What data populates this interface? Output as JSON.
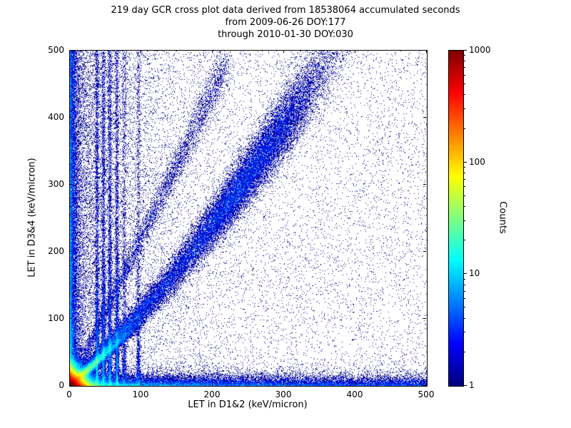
{
  "chart_data": {
    "type": "heatmap",
    "title_lines": [
      "219 day GCR cross plot data derived from 18538064 accumulated seconds",
      "from 2009-06-26 DOY:177",
      "through 2010-01-30 DOY:030"
    ],
    "xlabel": "LET in D1&2 (keV/micron)",
    "ylabel": "LET in D3&4 (keV/micron)",
    "xlim": [
      0,
      500
    ],
    "ylim": [
      0,
      500
    ],
    "xticks": [
      0,
      100,
      200,
      300,
      400,
      500
    ],
    "yticks": [
      0,
      100,
      200,
      300,
      400,
      500
    ],
    "grid": false,
    "background": "#ffffff",
    "colorbar": {
      "label": "Counts",
      "scale": "log",
      "range": [
        1,
        1000
      ],
      "ticks": [
        1,
        10,
        100,
        1000
      ],
      "colormap": "jet",
      "position": "right"
    },
    "visible_features": [
      "very dense hot spot (red/yellow/green) at the origin within ~0-30 keV/micron on both axes",
      "bright short diagonal streak near the origin up to ~(70,70)",
      "dense horizontal band along y~0 extending to x=500, brightest near origin",
      "dense vertical band along x~0 extending to y=500",
      "several cyan vertical streaks near x=38-66 dense below y~150, faint to y=500",
      "broad diagonal coincidence band of slope ~1.3 from origin exiting top near x~375 with a denser blue/cyan blob around (250,310)",
      "sparse uniform dark-blue single-count scatter over the whole plane, denser for x<150"
    ],
    "distribution": {
      "seed": 1337,
      "components": [
        {
          "kind": "exp2d",
          "n": 120000,
          "mx": 7,
          "my": 7
        },
        {
          "kind": "band_x",
          "n": 26000,
          "pow": 2.0,
          "ymean": 6
        },
        {
          "kind": "band_y",
          "n": 16000,
          "pow": 1.5,
          "xmean": 4
        },
        {
          "kind": "left_fill",
          "n": 12000,
          "xmean": 60
        },
        {
          "kind": "diag",
          "n": 40000,
          "frac_exp": 0.55,
          "exp_mean": 130,
          "bump_mu": 255,
          "bump_sigma": 55,
          "curve": 0.001,
          "xnoise0": 2,
          "xnoisek": 0.03,
          "ynoise0": 4,
          "ynoisek": 0.05
        },
        {
          "kind": "diag2",
          "n": 14000,
          "tmean": 22,
          "slope": 0.95,
          "sigma": 2.5
        },
        {
          "kind": "streaks",
          "centers": [
            38,
            47,
            56,
            66
          ],
          "n_each": 3500,
          "sigma_x": 1.3,
          "frac_low": 0.55,
          "ylow_mean": 70
        },
        {
          "kind": "streaks",
          "centers": [
            76,
            96
          ],
          "n_each": 1400,
          "sigma_x": 1.5,
          "frac_low": 0.5,
          "ylow_mean": 60
        },
        {
          "kind": "diag_steep",
          "n": 5000,
          "slope": 2.2,
          "tmax": 220,
          "pow": 0.9
        },
        {
          "kind": "uniform",
          "n": 9000
        }
      ]
    }
  }
}
